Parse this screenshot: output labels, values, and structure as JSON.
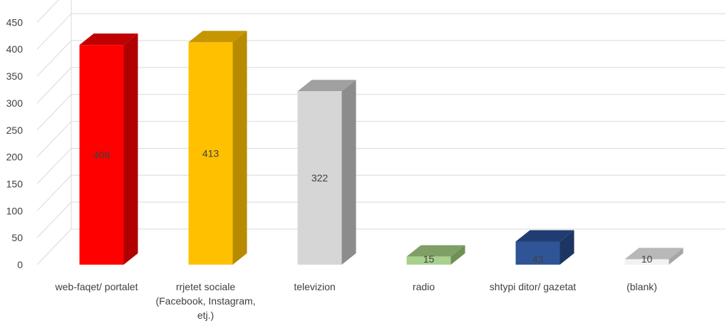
{
  "chart_data": {
    "type": "bar",
    "style": "3d-column",
    "categories": [
      [
        "web-faqet/ portalet"
      ],
      [
        "rrjetet sociale",
        "(Facebook, Instagram,",
        "etj.)"
      ],
      [
        "televizion"
      ],
      [
        "radio"
      ],
      [
        "shtypi ditor/ gazetat"
      ],
      [
        "(blank)"
      ]
    ],
    "values": [
      408,
      413,
      322,
      15,
      43,
      10
    ],
    "data_labels": [
      "408",
      "413",
      "322",
      "15",
      "43",
      "10"
    ],
    "ylim": [
      0,
      450
    ],
    "yticks": [
      "0",
      "50",
      "100",
      "150",
      "200",
      "250",
      "300",
      "350",
      "400",
      "450"
    ],
    "grid": true,
    "legend": "none",
    "colors": [
      {
        "front": "#ff0000",
        "side": "#b00000",
        "top": "#c00000"
      },
      {
        "front": "#ffc000",
        "side": "#b88a00",
        "top": "#c79500"
      },
      {
        "front": "#d6d6d6",
        "side": "#8c8c8c",
        "top": "#a0a0a0"
      },
      {
        "front": "#a9d18e",
        "side": "#6e8f55",
        "top": "#7f9f66"
      },
      {
        "front": "#2f5597",
        "side": "#1c3563",
        "top": "#203d73"
      },
      {
        "front": "#f2f2f2",
        "side": "#a6a6a6",
        "top": "#b8b8b8"
      }
    ],
    "gridline_color": "#d9d9d9"
  }
}
